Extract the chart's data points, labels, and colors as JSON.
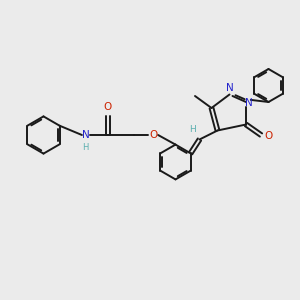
{
  "bg_color": "#ebebeb",
  "bond_color": "#1a1a1a",
  "N_color": "#2222cc",
  "O_color": "#cc2200",
  "H_color": "#5aafaf",
  "figsize": [
    3.0,
    3.0
  ],
  "dpi": 100,
  "xlim": [
    0,
    10
  ],
  "ylim": [
    0,
    10
  ]
}
